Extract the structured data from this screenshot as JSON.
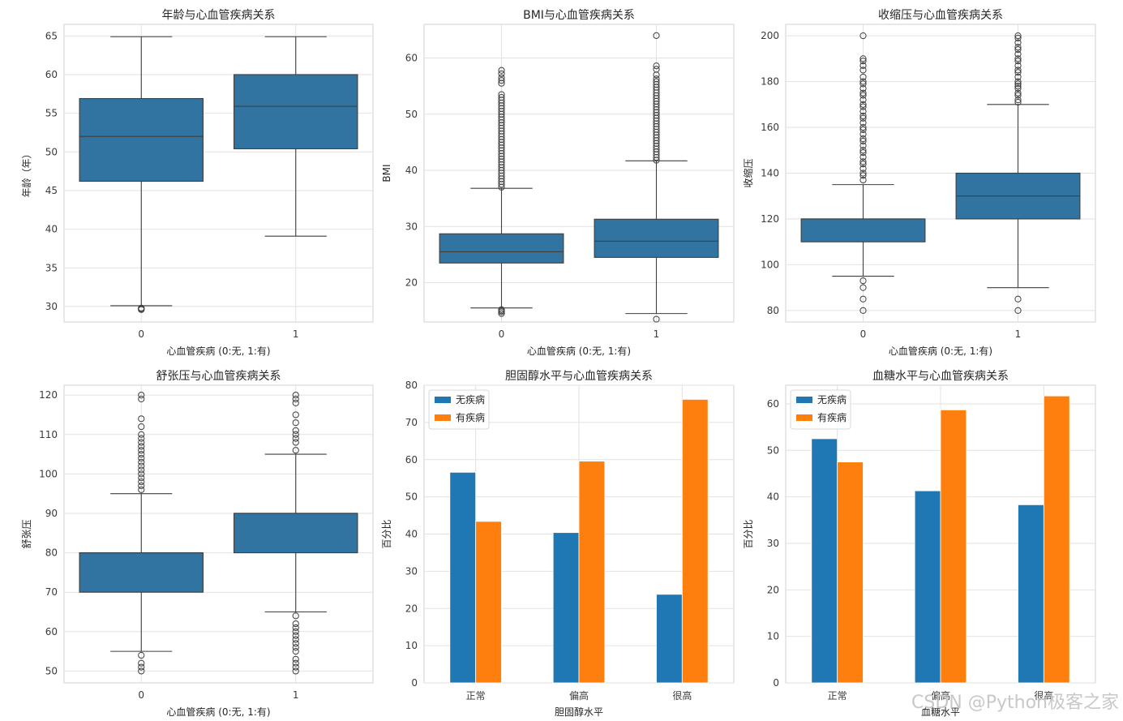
{
  "watermark": "CSDN @Python极客之家",
  "chart_data": [
    {
      "type": "box",
      "title": "年龄与心血管疾病关系",
      "xlabel": "心血管疾病 (0:无, 1:有)",
      "ylabel": "年龄（年）",
      "categories": [
        "0",
        "1"
      ],
      "ylim": [
        28,
        66.5
      ],
      "yticks": [
        30,
        35,
        40,
        45,
        50,
        55,
        60,
        65
      ],
      "color": "#3274a1",
      "grid": true,
      "boxes": [
        {
          "q1": 46.2,
          "median": 52.0,
          "q3": 56.9,
          "whisker_low": 30.1,
          "whisker_high": 64.9,
          "outliers": [
            29.6,
            29.7,
            29.8
          ]
        },
        {
          "q1": 50.4,
          "median": 55.9,
          "q3": 60.0,
          "whisker_low": 39.1,
          "whisker_high": 64.9,
          "outliers": []
        }
      ]
    },
    {
      "type": "box",
      "title": "BMI与心血管疾病关系",
      "xlabel": "心血管疾病 (0:无, 1:有)",
      "ylabel": "BMI",
      "categories": [
        "0",
        "1"
      ],
      "ylim": [
        13,
        66
      ],
      "yticks": [
        20,
        30,
        40,
        50,
        60
      ],
      "color": "#3274a1",
      "grid": true,
      "boxes": [
        {
          "q1": 23.5,
          "median": 25.5,
          "q3": 28.7,
          "whisker_low": 15.5,
          "whisker_high": 36.8,
          "outliers": [
            14.5,
            14.8,
            15.0,
            15.2,
            37.0,
            37.5,
            38.0,
            38.5,
            39.0,
            39.5,
            40.0,
            40.5,
            41.0,
            41.5,
            42.0,
            42.5,
            43.0,
            43.5,
            44.0,
            44.5,
            45.0,
            45.5,
            46.0,
            46.5,
            47.0,
            47.5,
            48.0,
            48.5,
            49.0,
            49.5,
            50.0,
            50.5,
            51.0,
            51.5,
            52.0,
            52.5,
            53.0,
            53.5,
            55.5,
            56.0,
            56.5,
            57.2,
            57.8
          ]
        },
        {
          "q1": 24.5,
          "median": 27.4,
          "q3": 31.3,
          "whisker_low": 14.5,
          "whisker_high": 41.7,
          "outliers": [
            13.5,
            41.8,
            42.3,
            42.8,
            43.3,
            43.8,
            44.3,
            44.8,
            45.3,
            45.8,
            46.3,
            46.8,
            47.3,
            47.8,
            48.3,
            48.8,
            49.3,
            49.8,
            50.3,
            50.8,
            51.3,
            51.8,
            52.3,
            52.8,
            53.3,
            53.8,
            54.3,
            54.8,
            55.3,
            55.8,
            56.3,
            57.0,
            58.0,
            58.6,
            64.0
          ]
        }
      ]
    },
    {
      "type": "box",
      "title": "收缩压与心血管疾病关系",
      "xlabel": "心血管疾病 (0:无, 1:有)",
      "ylabel": "收缩压",
      "categories": [
        "0",
        "1"
      ],
      "ylim": [
        75,
        205
      ],
      "yticks": [
        80,
        100,
        120,
        140,
        160,
        180,
        200
      ],
      "color": "#3274a1",
      "grid": true,
      "boxes": [
        {
          "q1": 110,
          "median": 120,
          "q3": 120,
          "whisker_low": 95,
          "whisker_high": 135,
          "outliers": [
            80,
            85,
            90,
            93,
            137,
            139,
            140,
            142,
            144,
            145,
            147,
            149,
            150,
            152,
            154,
            155,
            157,
            159,
            160,
            162,
            164,
            165,
            167,
            169,
            170,
            172,
            174,
            175,
            177,
            179,
            180,
            182,
            185,
            187,
            189,
            190,
            200
          ]
        },
        {
          "q1": 120,
          "median": 130,
          "q3": 140,
          "whisker_low": 90,
          "whisker_high": 170,
          "outliers": [
            80,
            85,
            171,
            172,
            174,
            175,
            177,
            178,
            179,
            180,
            182,
            184,
            185,
            187,
            189,
            190,
            192,
            194,
            195,
            197,
            199,
            200
          ]
        }
      ]
    },
    {
      "type": "box",
      "title": "舒张压与心血管疾病关系",
      "xlabel": "心血管疾病 (0:无, 1:有)",
      "ylabel": "舒张压",
      "categories": [
        "0",
        "1"
      ],
      "ylim": [
        47,
        122.5
      ],
      "yticks": [
        50,
        60,
        70,
        80,
        90,
        100,
        110,
        120
      ],
      "color": "#3274a1",
      "grid": true,
      "boxes": [
        {
          "q1": 70,
          "median": 80,
          "q3": 80,
          "whisker_low": 55,
          "whisker_high": 95,
          "outliers": [
            50,
            51,
            52,
            54,
            96,
            97,
            98,
            99,
            100,
            101,
            102,
            103,
            104,
            105,
            106,
            107,
            108,
            109,
            110,
            112,
            114,
            119,
            120
          ]
        },
        {
          "q1": 80,
          "median": 90,
          "q3": 90,
          "whisker_low": 65,
          "whisker_high": 105,
          "outliers": [
            50,
            51,
            52,
            53,
            55,
            56,
            57,
            58,
            59,
            60,
            61,
            62,
            64,
            106,
            108,
            109,
            110,
            111,
            113,
            115,
            118,
            119,
            120
          ]
        }
      ]
    },
    {
      "type": "bar",
      "title": "胆固醇水平与心血管疾病关系",
      "xlabel": "胆固醇水平",
      "ylabel": "百分比",
      "categories": [
        "正常",
        "偏高",
        "很高"
      ],
      "ylim": [
        0,
        80
      ],
      "yticks": [
        0,
        10,
        20,
        30,
        40,
        50,
        60,
        70,
        80
      ],
      "grid": true,
      "legend": "top-left",
      "series": [
        {
          "name": "无疾病",
          "color": "#1f77b4",
          "values": [
            56.6,
            40.4,
            23.8
          ]
        },
        {
          "name": "有疾病",
          "color": "#ff7f0e",
          "values": [
            43.4,
            59.6,
            76.2
          ]
        }
      ]
    },
    {
      "type": "bar",
      "title": "血糖水平与心血管疾病关系",
      "xlabel": "血糖水平",
      "ylabel": "百分比",
      "categories": [
        "正常",
        "偏高",
        "很高"
      ],
      "ylim": [
        0,
        64
      ],
      "yticks": [
        0,
        10,
        20,
        30,
        40,
        50,
        60
      ],
      "grid": true,
      "legend": "top-left",
      "series": [
        {
          "name": "无疾病",
          "color": "#1f77b4",
          "values": [
            52.5,
            41.3,
            38.3
          ]
        },
        {
          "name": "有疾病",
          "color": "#ff7f0e",
          "values": [
            47.5,
            58.7,
            61.7
          ]
        }
      ]
    }
  ]
}
